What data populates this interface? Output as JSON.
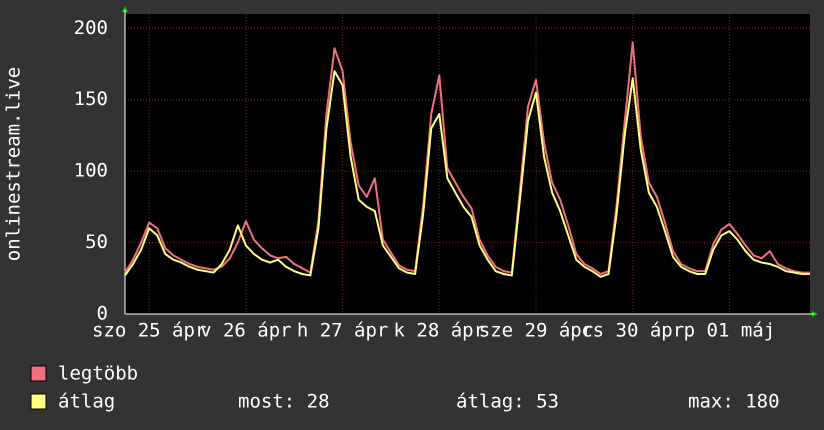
{
  "chart_data": {
    "type": "line",
    "y_label": "onlinestream.live",
    "xlim": [
      0,
      170
    ],
    "ylim": [
      0,
      210
    ],
    "yticks": [
      0,
      50,
      100,
      150,
      200
    ],
    "xticks": [
      {
        "value": 6,
        "label": "szo 25 ápr"
      },
      {
        "value": 30,
        "label": "v 26 ápr"
      },
      {
        "value": 54,
        "label": "h 27 ápr"
      },
      {
        "value": 78,
        "label": "k 28 ápr"
      },
      {
        "value": 102,
        "label": "sze 29 ápr"
      },
      {
        "value": 126,
        "label": "cs 30 ápr"
      },
      {
        "value": 150,
        "label": "p 01 máj"
      }
    ],
    "grid": true,
    "x": [
      0,
      2,
      4,
      6,
      8,
      10,
      12,
      14,
      16,
      18,
      20,
      22,
      24,
      26,
      28,
      30,
      32,
      34,
      36,
      38,
      40,
      42,
      44,
      46,
      48,
      50,
      52,
      54,
      56,
      58,
      60,
      62,
      64,
      66,
      68,
      70,
      72,
      74,
      76,
      78,
      80,
      82,
      84,
      86,
      88,
      90,
      92,
      94,
      96,
      98,
      100,
      102,
      104,
      106,
      108,
      110,
      112,
      114,
      116,
      118,
      120,
      122,
      124,
      126,
      128,
      130,
      132,
      134,
      136,
      138,
      140,
      142,
      144,
      146,
      148,
      150,
      152,
      154,
      156,
      158,
      160,
      162,
      164,
      166,
      168,
      170
    ],
    "series": [
      {
        "name": "legtöbb",
        "color": "#f07080",
        "values": [
          29,
          38,
          50,
          64,
          60,
          46,
          41,
          38,
          35,
          33,
          32,
          31,
          33,
          39,
          50,
          65,
          52,
          46,
          41,
          39,
          40,
          35,
          32,
          29,
          65,
          140,
          186,
          170,
          120,
          90,
          82,
          95,
          52,
          43,
          34,
          31,
          30,
          76,
          140,
          167,
          102,
          92,
          82,
          74,
          52,
          41,
          33,
          30,
          29,
          86,
          145,
          164,
          120,
          92,
          80,
          62,
          42,
          35,
          32,
          28,
          30,
          76,
          134,
          190,
          124,
          92,
          82,
          64,
          44,
          35,
          32,
          30,
          30,
          49,
          59,
          63,
          56,
          48,
          41,
          39,
          44,
          35,
          32,
          30,
          29,
          29
        ]
      },
      {
        "name": "átlag",
        "color": "#ffff80",
        "values": [
          27,
          35,
          45,
          60,
          55,
          42,
          38,
          36,
          33,
          31,
          30,
          29,
          35,
          45,
          62,
          48,
          42,
          38,
          36,
          38,
          33,
          30,
          28,
          27,
          60,
          130,
          170,
          160,
          110,
          80,
          75,
          72,
          48,
          40,
          32,
          29,
          28,
          70,
          130,
          140,
          95,
          85,
          75,
          68,
          48,
          38,
          30,
          28,
          27,
          80,
          135,
          155,
          110,
          85,
          72,
          55,
          38,
          33,
          30,
          26,
          28,
          70,
          125,
          165,
          115,
          85,
          75,
          58,
          40,
          33,
          30,
          28,
          28,
          45,
          55,
          58,
          52,
          44,
          38,
          36,
          35,
          33,
          30,
          29,
          28,
          28
        ]
      }
    ],
    "stats": [
      "most: 28",
      "átlag: 53",
      "max: 180"
    ]
  }
}
